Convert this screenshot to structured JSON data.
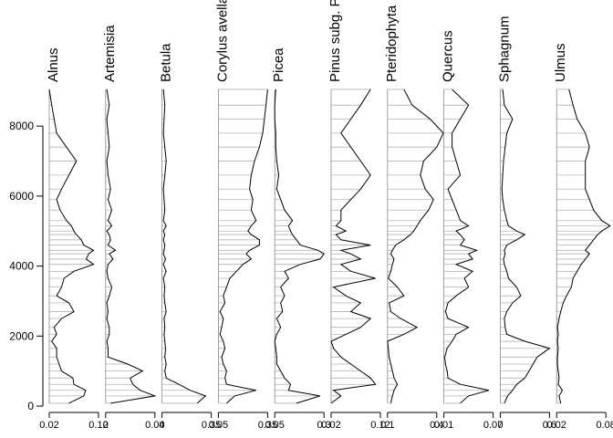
{
  "chart_data": {
    "type": "line",
    "subtype": "pollen-diagram (stratigraphic, taxa side by side)",
    "y_axis": {
      "ylim": [
        0,
        9100
      ],
      "ticks": [
        0,
        2000,
        4000,
        6000,
        8000
      ],
      "tick_labels": [
        "0",
        "2000",
        "4000",
        "6000",
        "8000"
      ],
      "grid_per_sample": true
    },
    "depths": [
      80,
      290,
      450,
      620,
      800,
      1000,
      1200,
      1400,
      1650,
      1850,
      2050,
      2250,
      2500,
      2700,
      2950,
      3150,
      3400,
      3650,
      3850,
      4050,
      4200,
      4350,
      4450,
      4600,
      4750,
      4900,
      5000,
      5150,
      5300,
      5600,
      5900,
      6200,
      6600,
      7000,
      7400,
      7800,
      8200,
      8600,
      9050
    ],
    "taxa": [
      {
        "name": "Alnus",
        "xlim": [
          0.02,
          0.12
        ],
        "ticks": [
          0.02,
          0.12
        ],
        "tick_labels": [
          "0.02",
          "0.12"
        ],
        "values": [
          0.06,
          0.09,
          0.094,
          0.07,
          0.068,
          0.045,
          0.04,
          0.035,
          0.035,
          0.025,
          0.035,
          0.03,
          0.045,
          0.07,
          0.06,
          0.035,
          0.045,
          0.05,
          0.07,
          0.11,
          0.095,
          0.1,
          0.11,
          0.09,
          0.085,
          0.075,
          0.07,
          0.065,
          0.055,
          0.042,
          0.035,
          0.045,
          0.06,
          0.075,
          0.055,
          0.035,
          0.03,
          0.025,
          0.02
        ]
      },
      {
        "name": "Artemisia",
        "xlim": [
          0,
          0.04
        ],
        "ticks": [
          0,
          0.04
        ],
        "tick_labels": [
          "0",
          "0.04"
        ],
        "values": [
          0.004,
          0.04,
          0.028,
          0.022,
          0.02,
          0.03,
          0.018,
          0.002,
          0.002,
          0.001,
          0.003,
          0.003,
          0.001,
          0.002,
          0.001,
          0.003,
          0.005,
          0.002,
          0.001,
          0.002,
          0.006,
          0.003,
          0.008,
          0.002,
          0.004,
          0.003,
          0.001,
          0.005,
          0.002,
          0.005,
          0.002,
          0.004,
          0.002,
          0.001,
          0.003,
          0.002,
          0.001,
          0.003,
          0.001
        ]
      },
      {
        "name": "Betula",
        "xlim": [
          0,
          0.35
        ],
        "ticks": [
          0,
          0.35
        ],
        "tick_labels": [
          "0",
          "0.35"
        ],
        "values": [
          0.25,
          0.31,
          0.2,
          0.12,
          0.03,
          0.02,
          0.03,
          0.02,
          0.025,
          0.02,
          0.015,
          0.02,
          0.015,
          0.03,
          0.02,
          0.015,
          0.02,
          0.01,
          0.03,
          0.01,
          0.025,
          0.01,
          0.015,
          0.02,
          0.01,
          0.02,
          0.01,
          0.03,
          0.01,
          0.02,
          0.015,
          0.01,
          0.02,
          0.03,
          0.02,
          0.01,
          0.015,
          0.02,
          0.01
        ]
      },
      {
        "name": "Corylus avellana",
        "xlim": [
          0.05,
          0.35
        ],
        "ticks": [
          0.05,
          0.35
        ],
        "tick_labels": [
          "0.05",
          "0.35"
        ],
        "values": [
          0.1,
          0.15,
          0.28,
          0.1,
          0.09,
          0.1,
          0.08,
          0.07,
          0.09,
          0.08,
          0.06,
          0.07,
          0.08,
          0.06,
          0.09,
          0.08,
          0.1,
          0.12,
          0.16,
          0.2,
          0.25,
          0.22,
          0.24,
          0.3,
          0.3,
          0.25,
          0.23,
          0.25,
          0.28,
          0.25,
          0.26,
          0.24,
          0.25,
          0.27,
          0.3,
          0.32,
          0.33,
          0.34,
          0.35
        ]
      },
      {
        "name": "Picea",
        "xlim": [
          0.05,
          0.3
        ],
        "ticks": [
          0.05,
          0.3
        ],
        "tick_labels": [
          "0.05",
          "0.3"
        ],
        "values": [
          0.16,
          0.28,
          0.12,
          0.13,
          0.1,
          0.08,
          0.06,
          0.06,
          0.055,
          0.05,
          0.06,
          0.08,
          0.06,
          0.09,
          0.08,
          0.1,
          0.08,
          0.12,
          0.1,
          0.18,
          0.28,
          0.3,
          0.27,
          0.18,
          0.16,
          0.14,
          0.13,
          0.12,
          0.14,
          0.1,
          0.08,
          0.06,
          0.07,
          0.06,
          0.055,
          0.055,
          0.05,
          0.05,
          0.055
        ]
      },
      {
        "name": "Pinus subg. Pinus",
        "xlim": [
          0.02,
          0.12
        ],
        "ticks": [
          0.02,
          0.12
        ],
        "tick_labels": [
          "0.02",
          "0.12"
        ],
        "values": [
          0.02,
          0.04,
          0.025,
          0.11,
          0.1,
          0.08,
          0.06,
          0.04,
          0.025,
          0.02,
          0.05,
          0.08,
          0.1,
          0.06,
          0.08,
          0.05,
          0.025,
          0.11,
          0.06,
          0.04,
          0.08,
          0.06,
          0.04,
          0.1,
          0.04,
          0.03,
          0.05,
          0.03,
          0.04,
          0.04,
          0.06,
          0.08,
          0.1,
          0.08,
          0.06,
          0.04,
          0.06,
          0.08,
          0.1
        ]
      },
      {
        "name": "Pteridophyta",
        "xlim": [
          0.1,
          0.4
        ],
        "ticks": [
          0.1,
          0.4
        ],
        "tick_labels": [
          "0.1",
          "0.4"
        ],
        "values": [
          0.12,
          0.13,
          0.14,
          0.16,
          0.14,
          0.13,
          0.12,
          0.11,
          0.105,
          0.1,
          0.2,
          0.28,
          0.18,
          0.12,
          0.11,
          0.2,
          0.16,
          0.105,
          0.12,
          0.13,
          0.14,
          0.12,
          0.13,
          0.15,
          0.2,
          0.24,
          0.26,
          0.28,
          0.3,
          0.35,
          0.38,
          0.33,
          0.3,
          0.32,
          0.4,
          0.44,
          0.36,
          0.25,
          0.2
        ]
      },
      {
        "name": "Quercus",
        "xlim": [
          0.01,
          0.07
        ],
        "ticks": [
          0.01,
          0.07
        ],
        "tick_labels": [
          "0.01",
          "0.07"
        ],
        "values": [
          0.03,
          0.04,
          0.065,
          0.03,
          0.015,
          0.014,
          0.012,
          0.011,
          0.014,
          0.02,
          0.025,
          0.04,
          0.015,
          0.012,
          0.015,
          0.025,
          0.04,
          0.035,
          0.045,
          0.025,
          0.045,
          0.04,
          0.05,
          0.03,
          0.035,
          0.03,
          0.025,
          0.04,
          0.03,
          0.025,
          0.02,
          0.015,
          0.03,
          0.025,
          0.02,
          0.02,
          0.03,
          0.04,
          0.02
        ]
      },
      {
        "name": "Sphagnum",
        "xlim": [
          0,
          0.6
        ],
        "ticks": [
          0,
          0.6
        ],
        "tick_labels": [
          "0",
          "0.6"
        ],
        "values": [
          0.05,
          0.09,
          0.15,
          0.2,
          0.3,
          0.35,
          0.4,
          0.45,
          0.6,
          0.3,
          0.08,
          0.06,
          0.05,
          0.08,
          0.15,
          0.25,
          0.2,
          0.1,
          0.08,
          0.05,
          0.04,
          0.06,
          0.05,
          0.08,
          0.2,
          0.3,
          0.2,
          0.1,
          0.08,
          0.05,
          0.03,
          0.02,
          0.03,
          0.04,
          0.06,
          0.08,
          0.15,
          0.05,
          0.03
        ]
      },
      {
        "name": "Ulmus",
        "xlim": [
          0.02,
          0.08
        ],
        "ticks": [
          0.02,
          0.08
        ],
        "tick_labels": [
          "0.02",
          "0.08"
        ],
        "values": [
          0.025,
          0.023,
          0.027,
          0.022,
          0.023,
          0.022,
          0.021,
          0.021,
          0.022,
          0.021,
          0.022,
          0.021,
          0.023,
          0.025,
          0.028,
          0.032,
          0.038,
          0.04,
          0.045,
          0.05,
          0.055,
          0.06,
          0.055,
          0.06,
          0.065,
          0.07,
          0.075,
          0.085,
          0.075,
          0.065,
          0.06,
          0.055,
          0.055,
          0.055,
          0.06,
          0.055,
          0.045,
          0.04,
          0.035
        ]
      }
    ]
  }
}
